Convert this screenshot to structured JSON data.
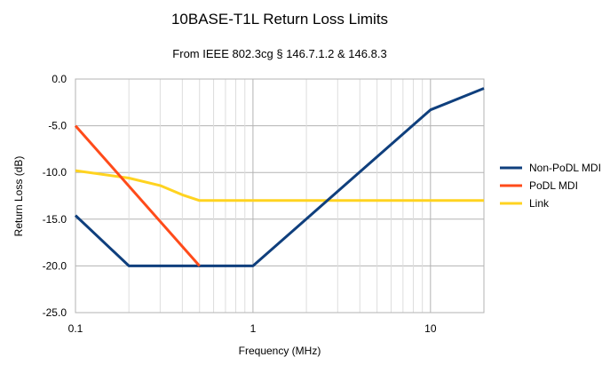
{
  "chart_data": {
    "type": "line",
    "title": "10BASE-T1L Return Loss Limits",
    "subtitle": "From IEEE 802.3cg § 146.7.1.2 & 146.8.3",
    "xlabel": "Frequency (MHz)",
    "ylabel": "Return Loss (dB)",
    "x_scale": "log",
    "xlim": [
      0.1,
      20
    ],
    "ylim": [
      -25,
      0
    ],
    "x_ticks": [
      "0.1",
      "1",
      "10"
    ],
    "y_ticks": [
      "0.0",
      "-5.0",
      "-10.0",
      "-15.0",
      "-20.0",
      "-25.0"
    ],
    "grid": true,
    "legend_position": "right",
    "series": [
      {
        "name": "Non-PoDL MDI",
        "color": "#0f3f7d",
        "x": [
          0.1,
          0.2,
          1,
          10,
          20
        ],
        "y": [
          -14.6,
          -20,
          -20,
          -3.3,
          -1.0
        ]
      },
      {
        "name": "PoDL MDI",
        "color": "#ff4b1a",
        "x": [
          0.1,
          0.5
        ],
        "y": [
          -5.0,
          -20.0
        ]
      },
      {
        "name": "Link",
        "color": "#ffd320",
        "x": [
          0.1,
          0.2,
          0.3,
          0.4,
          0.5,
          1,
          10,
          20
        ],
        "y": [
          -9.8,
          -10.6,
          -11.4,
          -12.4,
          -13.0,
          -13.0,
          -13.0,
          -13.0
        ]
      }
    ]
  }
}
